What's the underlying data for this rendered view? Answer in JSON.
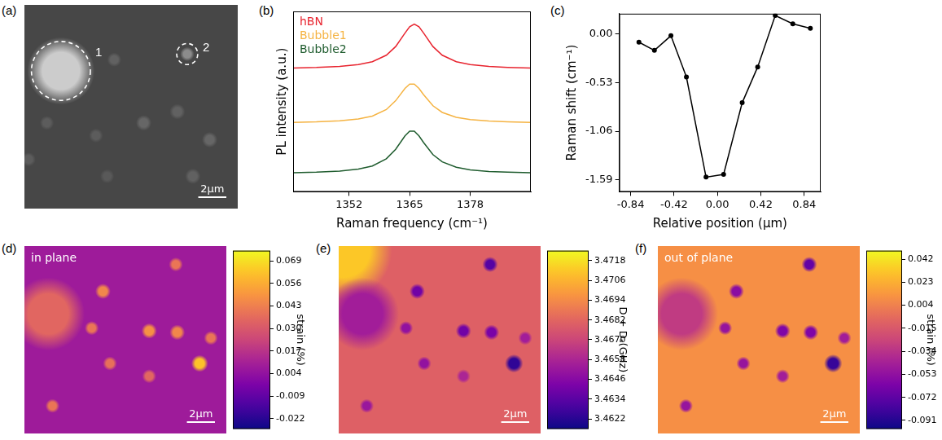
{
  "chart_data": [
    {
      "panel": "(a)",
      "type": "image",
      "color": "gray",
      "tick_labels": false,
      "xlim": [
        0,
        15.2
      ],
      "ylim": [
        0,
        14.5
      ],
      "background": 0.28,
      "spots": [
        {
          "x": 2.6,
          "y": 4.7,
          "r": 2.4,
          "value": 0.8
        },
        {
          "x": 11.6,
          "y": 3.5,
          "r": 0.5,
          "value": 0.55
        },
        {
          "x": 6.4,
          "y": 3.9,
          "r": 0.5,
          "value": 0.38
        },
        {
          "x": 8.5,
          "y": 8.4,
          "r": 0.55,
          "value": 0.4
        },
        {
          "x": 10.9,
          "y": 7.6,
          "r": 0.55,
          "value": 0.38
        },
        {
          "x": 13.2,
          "y": 9.6,
          "r": 0.55,
          "value": 0.4
        },
        {
          "x": 1.6,
          "y": 8.4,
          "r": 0.5,
          "value": 0.36
        },
        {
          "x": 0.3,
          "y": 11.0,
          "r": 0.5,
          "value": 0.36
        },
        {
          "x": 5.1,
          "y": 9.3,
          "r": 0.5,
          "value": 0.36
        },
        {
          "x": 12.0,
          "y": 12.2,
          "r": 0.55,
          "value": 0.38
        },
        {
          "x": 5.9,
          "y": 12.2,
          "r": 0.5,
          "value": 0.35
        }
      ],
      "circles": [
        {
          "label": "1",
          "x": 2.6,
          "y": 4.7,
          "r": 2.1
        },
        {
          "label": "2",
          "x": 11.6,
          "y": 3.5,
          "r": 0.75
        }
      ],
      "scale_bar": {
        "length": 2,
        "label": "2μm"
      }
    },
    {
      "panel": "(b)",
      "type": "line",
      "x_label": "Raman frequency (cm⁻¹)",
      "y_label": "PL intensity (a.u.)",
      "xlim": [
        1340,
        1391
      ],
      "xticks": [
        1352,
        1365,
        1378
      ],
      "ylim": [
        0,
        1
      ],
      "tick_labels": "x",
      "grid": false,
      "legend": "top left",
      "x": [
        1340,
        1345,
        1350,
        1354,
        1357,
        1360,
        1362,
        1364,
        1365,
        1366,
        1367,
        1368,
        1370,
        1372,
        1375,
        1378,
        1382,
        1386,
        1391
      ],
      "series": [
        {
          "name": "hBN",
          "color": "#e8242f",
          "marker": "none",
          "line_style": "solid",
          "values": [
            0.686,
            0.689,
            0.695,
            0.705,
            0.721,
            0.757,
            0.805,
            0.88,
            0.915,
            0.93,
            0.915,
            0.88,
            0.805,
            0.757,
            0.721,
            0.705,
            0.695,
            0.69,
            0.686
          ]
        },
        {
          "name": "Bubble1",
          "color": "#f5b342",
          "marker": "none",
          "line_style": "solid",
          "values": [
            0.385,
            0.388,
            0.394,
            0.404,
            0.42,
            0.456,
            0.505,
            0.573,
            0.597,
            0.597,
            0.573,
            0.538,
            0.477,
            0.44,
            0.413,
            0.4,
            0.392,
            0.388,
            0.385
          ]
        },
        {
          "name": "Bubble2",
          "color": "#1f5c2e",
          "marker": "none",
          "line_style": "solid",
          "values": [
            0.106,
            0.109,
            0.115,
            0.126,
            0.143,
            0.183,
            0.236,
            0.31,
            0.336,
            0.336,
            0.31,
            0.273,
            0.206,
            0.166,
            0.136,
            0.122,
            0.113,
            0.109,
            0.106
          ]
        }
      ]
    },
    {
      "panel": "(c)",
      "type": "line",
      "x_label": "Relative position (μm)",
      "y_label": "Raman shift (cm⁻¹)",
      "xlim": [
        -0.95,
        1.0
      ],
      "xticks": [
        -0.84,
        -0.42,
        {
          "value": 0,
          "label": "0.00"
        },
        0.42,
        0.84
      ],
      "ylim": [
        -1.72,
        0.22
      ],
      "yticks": [
        -1.59,
        -1.06,
        -0.53,
        {
          "value": 0,
          "label": "0.00"
        }
      ],
      "grid": false,
      "color": "#000000",
      "marker": "circle",
      "line_style": "solid",
      "x": [
        -0.76,
        -0.61,
        -0.45,
        -0.3,
        -0.11,
        0.06,
        0.24,
        0.39,
        0.56,
        0.73,
        0.9
      ],
      "values": [
        -0.09,
        -0.18,
        -0.02,
        -0.47,
        -1.56,
        -1.53,
        -0.75,
        -0.36,
        0.2,
        0.11,
        0.06
      ]
    },
    {
      "panel": "(d)",
      "type": "heatmap",
      "color": "plasma",
      "tick_labels": false,
      "annotation": "in plane",
      "xlim": [
        0,
        14.4
      ],
      "ylim": [
        0,
        13.25
      ],
      "background": 0.008,
      "spots": [
        {
          "x": 1.7,
          "y": 4.8,
          "r": 2.6,
          "value": 0.035
        },
        {
          "x": 5.6,
          "y": 3.2,
          "r": 0.55,
          "value": 0.045
        },
        {
          "x": 10.8,
          "y": 1.3,
          "r": 0.5,
          "value": 0.04
        },
        {
          "x": 4.8,
          "y": 5.8,
          "r": 0.5,
          "value": 0.04
        },
        {
          "x": 8.9,
          "y": 6.0,
          "r": 0.55,
          "value": 0.048
        },
        {
          "x": 10.9,
          "y": 6.1,
          "r": 0.55,
          "value": 0.045
        },
        {
          "x": 12.5,
          "y": 8.3,
          "r": 0.6,
          "value": 0.062
        },
        {
          "x": 13.3,
          "y": 6.5,
          "r": 0.5,
          "value": 0.04
        },
        {
          "x": 6.1,
          "y": 8.3,
          "r": 0.5,
          "value": 0.038
        },
        {
          "x": 2.0,
          "y": 11.3,
          "r": 0.5,
          "value": 0.04
        },
        {
          "x": 8.9,
          "y": 9.2,
          "r": 0.5,
          "value": 0.035
        }
      ],
      "colorbar": {
        "label": "strain (%)",
        "range": [
          -0.028,
          0.075
        ],
        "ticks": [
          -0.022,
          -0.009,
          0.004,
          0.017,
          {
            "value": 0.03,
            "label": "0.030"
          },
          0.043,
          0.056,
          0.069
        ]
      },
      "scale_bar": {
        "length": 2,
        "label": "2μm"
      }
    },
    {
      "panel": "(e)",
      "type": "heatmap",
      "color": "plasma",
      "tick_labels": false,
      "xlim": [
        0,
        14.4
      ],
      "ylim": [
        0,
        13.25
      ],
      "background": 3.468,
      "spots": [
        {
          "x": 0.3,
          "y": 0.3,
          "r": 3.5,
          "value": 3.4712
        },
        {
          "x": 1.7,
          "y": 4.8,
          "r": 2.6,
          "value": 3.4655
        },
        {
          "x": 5.6,
          "y": 3.2,
          "r": 0.55,
          "value": 3.464
        },
        {
          "x": 10.8,
          "y": 1.3,
          "r": 0.55,
          "value": 3.4633
        },
        {
          "x": 4.8,
          "y": 5.8,
          "r": 0.5,
          "value": 3.465
        },
        {
          "x": 8.9,
          "y": 6.0,
          "r": 0.55,
          "value": 3.464
        },
        {
          "x": 10.9,
          "y": 6.1,
          "r": 0.55,
          "value": 3.4642
        },
        {
          "x": 12.5,
          "y": 8.3,
          "r": 0.65,
          "value": 3.4624
        },
        {
          "x": 13.3,
          "y": 6.5,
          "r": 0.5,
          "value": 3.4655
        },
        {
          "x": 6.1,
          "y": 8.3,
          "r": 0.5,
          "value": 3.465
        },
        {
          "x": 2.0,
          "y": 11.3,
          "r": 0.5,
          "value": 3.4652
        },
        {
          "x": 8.9,
          "y": 9.2,
          "r": 0.5,
          "value": 3.4658
        }
      ],
      "colorbar": {
        "label": "D + Dₛ(GHz)",
        "range": [
          3.4616,
          3.4724
        ],
        "ticks": [
          3.4622,
          3.4634,
          3.4646,
          3.4658,
          {
            "value": 3.467,
            "label": "3.4670"
          },
          3.4682,
          3.4694,
          3.4706,
          3.4718
        ]
      },
      "scale_bar": {
        "length": 2,
        "label": "2μm"
      }
    },
    {
      "panel": "(f)",
      "type": "heatmap",
      "color": "plasma",
      "tick_labels": false,
      "annotation": "out of plane",
      "xlim": [
        0,
        14.4
      ],
      "ylim": [
        0,
        13.25
      ],
      "background": 0.01,
      "spots": [
        {
          "x": 1.7,
          "y": 4.8,
          "r": 2.6,
          "value": -0.03
        },
        {
          "x": 5.6,
          "y": 3.2,
          "r": 0.55,
          "value": -0.055
        },
        {
          "x": 10.8,
          "y": 1.3,
          "r": 0.55,
          "value": -0.07
        },
        {
          "x": 4.8,
          "y": 5.8,
          "r": 0.5,
          "value": -0.05
        },
        {
          "x": 8.9,
          "y": 6.0,
          "r": 0.55,
          "value": -0.06
        },
        {
          "x": 10.9,
          "y": 6.1,
          "r": 0.55,
          "value": -0.06
        },
        {
          "x": 12.5,
          "y": 8.3,
          "r": 0.65,
          "value": -0.085
        },
        {
          "x": 13.3,
          "y": 6.5,
          "r": 0.5,
          "value": -0.045
        },
        {
          "x": 6.1,
          "y": 8.3,
          "r": 0.5,
          "value": -0.05
        },
        {
          "x": 2.0,
          "y": 11.3,
          "r": 0.5,
          "value": -0.05
        },
        {
          "x": 8.9,
          "y": 9.2,
          "r": 0.5,
          "value": -0.045
        }
      ],
      "colorbar": {
        "label": "strain (%)",
        "range": [
          -0.098,
          0.049
        ],
        "ticks": [
          -0.091,
          -0.072,
          -0.053,
          -0.034,
          -0.015,
          0.004,
          0.023,
          0.042
        ]
      },
      "scale_bar": {
        "length": 2,
        "label": "2μm"
      }
    }
  ]
}
